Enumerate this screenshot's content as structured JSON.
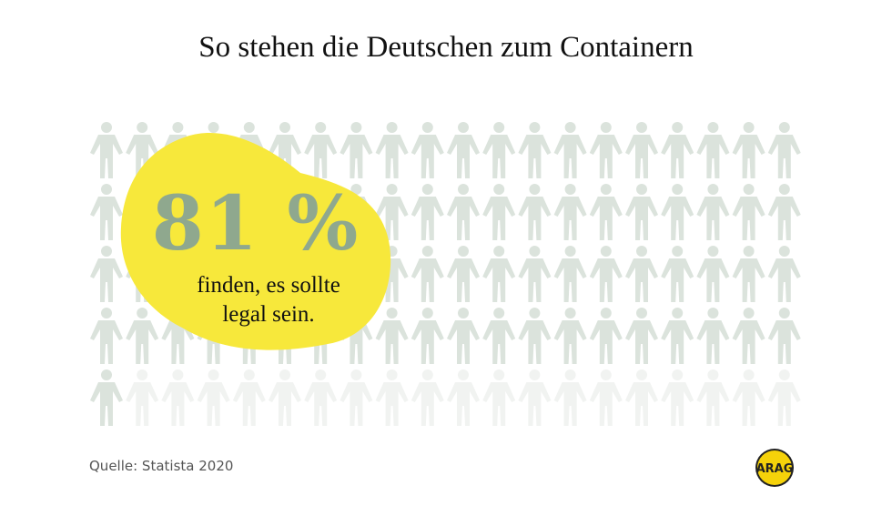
{
  "title": "So stehen die Deutschen zum Containern",
  "stat": {
    "value": "81 %",
    "percent": 81,
    "total_figures": 100,
    "caption_line1": "finden, es sollte",
    "caption_line2": "legal sein."
  },
  "source": "Quelle:  Statista 2020",
  "logo": "ARAG",
  "colors": {
    "highlight": "#f7e83b",
    "stat_text": "#8fa88e",
    "figure_active": "#dbe3dc",
    "figure_inactive": "#f1f3f1",
    "logo": "#f5d20a"
  }
}
